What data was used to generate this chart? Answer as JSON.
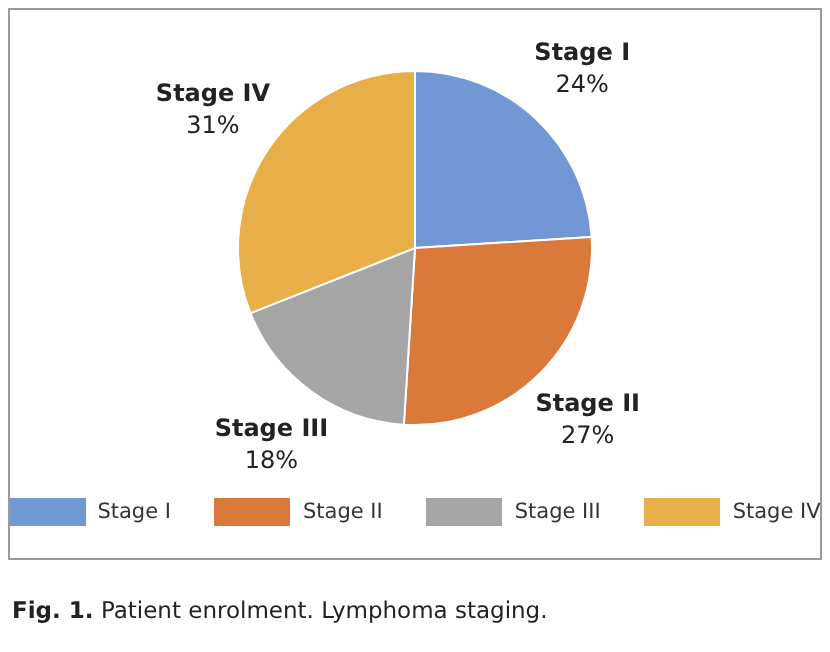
{
  "chart_data": {
    "type": "pie",
    "categories": [
      "Stage I",
      "Stage II",
      "Stage III",
      "Stage IV"
    ],
    "values": [
      24,
      27,
      18,
      31
    ],
    "colors": [
      "#7198d4",
      "#d9793a",
      "#a5a5a5",
      "#e8ae48"
    ],
    "value_labels": [
      "24%",
      "27%",
      "18%",
      "31%"
    ],
    "legend": "bottom",
    "annotations": [
      "Fig. 1.",
      "Patient enrolment. Lymphoma staging."
    ]
  }
}
